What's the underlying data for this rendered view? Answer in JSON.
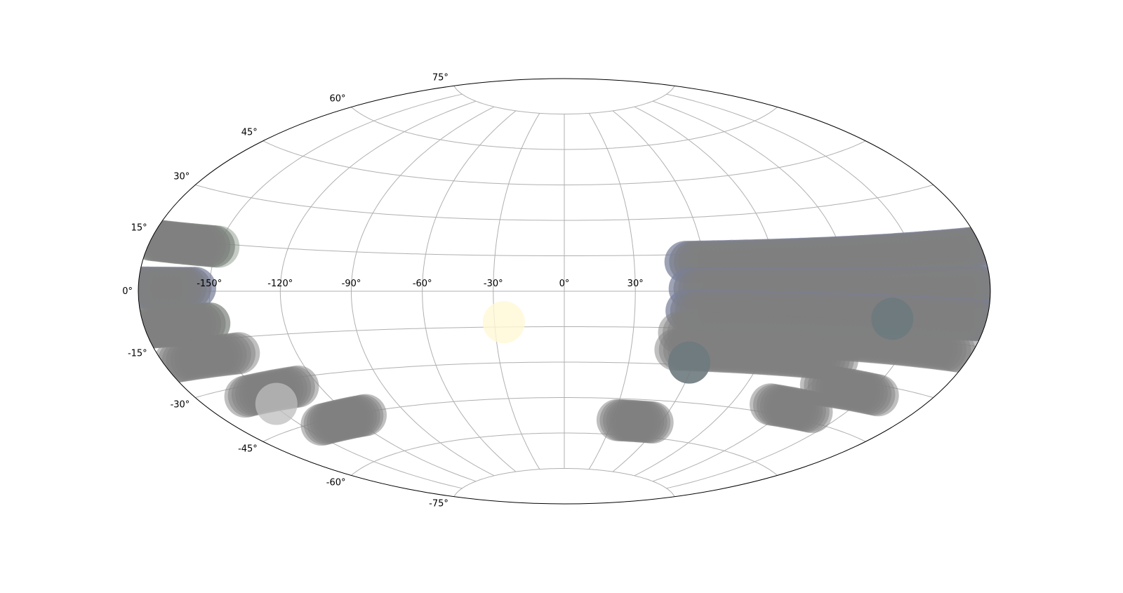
{
  "chart_data": {
    "type": "scatter",
    "projection": "aitoff",
    "title": "",
    "xlabel": "",
    "ylabel": "",
    "xlim": [
      -180,
      180
    ],
    "ylim": [
      -90,
      90
    ],
    "grid": true,
    "x_ticks": [
      "-150°",
      "-120°",
      "-90°",
      "-60°",
      "-30°",
      "0°",
      "30°"
    ],
    "x_tick_values": [
      -150,
      -120,
      -90,
      -60,
      -30,
      0,
      30
    ],
    "y_ticks": [
      "75°",
      "60°",
      "45°",
      "30°",
      "15°",
      "0°",
      "-15°",
      "-30°",
      "-45°",
      "-60°",
      "-75°"
    ],
    "y_tick_values": [
      75,
      60,
      45,
      30,
      15,
      0,
      -15,
      -30,
      -45,
      -60,
      -75
    ],
    "colors": {
      "gray": "#808080",
      "blue": "#6a7fd0",
      "dark": "#6d7a7d",
      "green": "#7f8f7f",
      "light": "#bdbdbd",
      "yellow": "#fff8d6",
      "grid": "#b0b0b0",
      "frame": "#000000"
    },
    "bands": [
      {
        "lon_range": [
          52,
          180
        ],
        "lat": 12,
        "color": "blue"
      },
      {
        "lon_range": [
          -180,
          -149
        ],
        "lat": 14,
        "color": "green"
      },
      {
        "lon_range": [
          -180,
          -151
        ],
        "lat": 14,
        "color": "gray"
      },
      {
        "lon_range": [
          52,
          180
        ],
        "lat": 12,
        "color": "gray"
      },
      {
        "lon_range": [
          53,
          180
        ],
        "lat": 1,
        "color": "blue"
      },
      {
        "lon_range": [
          -180,
          -156
        ],
        "lat": 1,
        "color": "blue"
      },
      {
        "lon_range": [
          -180,
          -156
        ],
        "lat": 1,
        "color": "gray"
      },
      {
        "lon_range": [
          53,
          180
        ],
        "lat": 1,
        "color": "gray"
      },
      {
        "lon_range": [
          52,
          180
        ],
        "lat": -8,
        "color": "blue"
      },
      {
        "lon_range": [
          -180,
          -152
        ],
        "lat": -10,
        "color": "green"
      },
      {
        "lon_range": [
          -180,
          -152
        ],
        "lat": -10,
        "color": "gray"
      },
      {
        "lon_range": [
          52,
          180
        ],
        "lat": -8,
        "color": "gray"
      },
      {
        "lon_range": [
          50,
          175
        ],
        "lat": -17,
        "color": "gray"
      },
      {
        "lon_range": [
          -175,
          -145
        ],
        "lat": -20,
        "color": "gray"
      },
      {
        "lon_range": [
          50,
          125
        ],
        "lat": -24,
        "color": "gray"
      },
      {
        "lon_range": [
          -158,
          -130
        ],
        "lat": -33,
        "color": "gray"
      },
      {
        "lon_range": [
          125,
          155
        ],
        "lat": -33,
        "color": "gray"
      },
      {
        "lon_range": [
          -140,
          -112
        ],
        "lat": -46,
        "color": "gray"
      },
      {
        "lon_range": [
          110,
          135
        ],
        "lat": -42,
        "color": "gray"
      },
      {
        "lon_range": [
          33,
          55
        ],
        "lat": -54,
        "color": "gray"
      }
    ],
    "points": [
      {
        "lon": 140,
        "lat": -9,
        "color": "dark"
      },
      {
        "lon": 58,
        "lat": -29,
        "color": "dark"
      },
      {
        "lon": -148,
        "lat": -37,
        "color": "light"
      },
      {
        "lon": -26,
        "lat": -13,
        "color": "yellow"
      }
    ]
  }
}
